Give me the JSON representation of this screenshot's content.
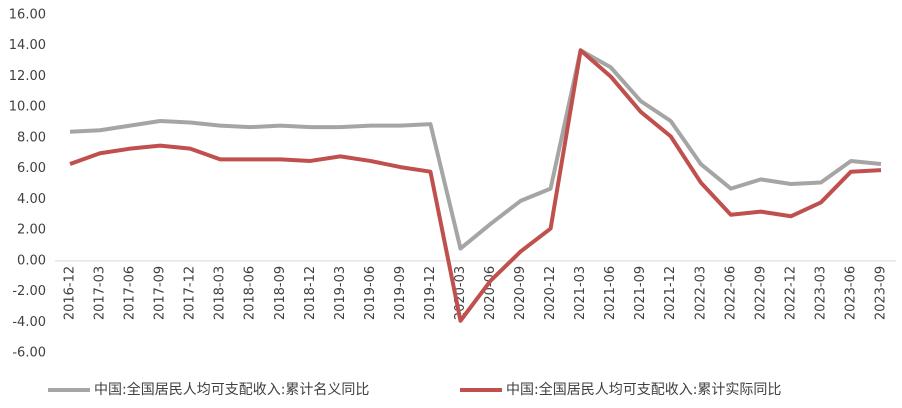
{
  "chart_data": {
    "type": "line",
    "categories": [
      "2016-12",
      "2017-03",
      "2017-06",
      "2017-09",
      "2017-12",
      "2018-03",
      "2018-06",
      "2018-09",
      "2018-12",
      "2019-03",
      "2019-06",
      "2019-09",
      "2019-12",
      "2020-03",
      "2020-06",
      "2020-09",
      "2020-12",
      "2021-03",
      "2021-06",
      "2021-09",
      "2021-12",
      "2022-03",
      "2022-06",
      "2022-09",
      "2022-12",
      "2023-03",
      "2023-06",
      "2023-09"
    ],
    "series": [
      {
        "name": "中国:全国居民人均可支配收入:累计名义同比",
        "color": "#a5a5a5",
        "values": [
          8.4,
          8.5,
          8.8,
          9.1,
          9.0,
          8.8,
          8.7,
          8.8,
          8.7,
          8.7,
          8.8,
          8.8,
          8.9,
          0.8,
          2.4,
          3.9,
          4.7,
          13.7,
          12.6,
          10.4,
          9.1,
          6.3,
          4.7,
          5.3,
          5.0,
          5.1,
          6.5,
          6.3
        ]
      },
      {
        "name": "中国:全国居民人均可支配收入:累计实际同比",
        "color": "#c0504d",
        "values": [
          6.3,
          7.0,
          7.3,
          7.5,
          7.3,
          6.6,
          6.6,
          6.6,
          6.5,
          6.8,
          6.5,
          6.1,
          5.8,
          -3.9,
          -1.3,
          0.6,
          2.1,
          13.7,
          12.0,
          9.7,
          8.1,
          5.1,
          3.0,
          3.2,
          2.9,
          3.8,
          5.8,
          5.9
        ]
      }
    ],
    "ylim": [
      -6,
      16
    ],
    "yticks": [
      {
        "value": -6,
        "label": "-6.00"
      },
      {
        "value": -4,
        "label": "-4.00"
      },
      {
        "value": -2,
        "label": "-2.00"
      },
      {
        "value": 0,
        "label": "0.00"
      },
      {
        "value": 2,
        "label": "2.00"
      },
      {
        "value": 4,
        "label": "4.00"
      },
      {
        "value": 6,
        "label": "6.00"
      },
      {
        "value": 8,
        "label": "8.00"
      },
      {
        "value": 10,
        "label": "10.00"
      },
      {
        "value": 12,
        "label": "12.00"
      },
      {
        "value": 14,
        "label": "14.00"
      },
      {
        "value": 16,
        "label": "16.00"
      }
    ],
    "legend": "bottom"
  }
}
